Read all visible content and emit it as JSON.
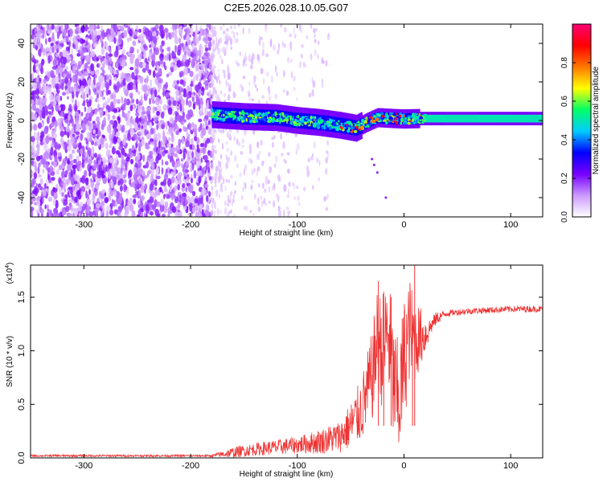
{
  "title": "C2E5.2026.028.10.05.G07",
  "chart_data": [
    {
      "type": "heatmap",
      "title": "C2E5.2026.028.10.05.G07",
      "xlabel": "Height of straight line (km)",
      "ylabel": "Frequency (Hz)",
      "xlim": [
        -350,
        130
      ],
      "ylim": [
        -50,
        50
      ],
      "x_ticks": [
        "-300",
        "-200",
        "-100",
        "0",
        "100"
      ],
      "x_tick_values": [
        -300,
        -200,
        -100,
        0,
        100
      ],
      "y_ticks": [
        "-40",
        "-20",
        "0",
        "20",
        "40"
      ],
      "y_tick_values": [
        -40,
        -20,
        0,
        20,
        40
      ],
      "noise_region_km": [
        -350,
        -180
      ],
      "signal_track": [
        {
          "x": -180,
          "f": 3.0
        },
        {
          "x": -150,
          "f": 2.0
        },
        {
          "x": -120,
          "f": 1.5
        },
        {
          "x": -100,
          "f": 0.0
        },
        {
          "x": -80,
          "f": -1.0
        },
        {
          "x": -60,
          "f": -2.5
        },
        {
          "x": -45,
          "f": -4.0
        },
        {
          "x": -35,
          "f": -1.0
        },
        {
          "x": -25,
          "f": 1.5
        },
        {
          "x": -10,
          "f": 1.0
        },
        {
          "x": 0,
          "f": 0.8
        },
        {
          "x": 15,
          "f": 1.0
        },
        {
          "x": 130,
          "f": 1.0
        }
      ],
      "colorbar": {
        "label": "Normalized spectral amplitude",
        "range": [
          0.0,
          1.0
        ],
        "ticks": [
          "0.0",
          "0.2",
          "0.4",
          "0.6",
          "0.8"
        ],
        "tick_values": [
          0.0,
          0.2,
          0.4,
          0.6,
          0.8
        ],
        "colors": [
          "#ffffff",
          "#cc99ff",
          "#7700ff",
          "#0000ff",
          "#00ccff",
          "#00ff66",
          "#ffff00",
          "#ff7700",
          "#ff0000",
          "#ff0077"
        ]
      }
    },
    {
      "type": "line",
      "xlabel": "Height of straight line (km)",
      "ylabel": "SNR (10 * v/v)",
      "y_multiplier": "(x10",
      "y_multiplier_exp": "4",
      "y_multiplier_close": ")",
      "xlim": [
        -350,
        130
      ],
      "ylim": [
        0,
        1.8
      ],
      "x_ticks": [
        "-300",
        "-200",
        "-100",
        "0",
        "100"
      ],
      "x_tick_values": [
        -300,
        -200,
        -100,
        0,
        100
      ],
      "y_ticks": [
        "0.0",
        "0.5",
        "1.0",
        "1.5"
      ],
      "y_tick_values": [
        0.0,
        0.5,
        1.0,
        1.5
      ],
      "line_color": "#ee3333",
      "series": [
        {
          "name": "SNR",
          "points": [
            [
              -350,
              0.02
            ],
            [
              -300,
              0.02
            ],
            [
              -250,
              0.02
            ],
            [
              -200,
              0.02
            ],
            [
              -180,
              0.02
            ],
            [
              -160,
              0.05
            ],
            [
              -140,
              0.08
            ],
            [
              -120,
              0.1
            ],
            [
              -100,
              0.12
            ],
            [
              -80,
              0.15
            ],
            [
              -60,
              0.2
            ],
            [
              -50,
              0.3
            ],
            [
              -40,
              0.45
            ],
            [
              -30,
              0.75
            ],
            [
              -25,
              1.1
            ],
            [
              -20,
              1.0
            ],
            [
              -15,
              1.2
            ],
            [
              -10,
              0.7
            ],
            [
              -5,
              0.5
            ],
            [
              0,
              0.9
            ],
            [
              5,
              1.2
            ],
            [
              10,
              1.1
            ],
            [
              20,
              1.15
            ],
            [
              30,
              1.3
            ],
            [
              40,
              1.35
            ],
            [
              60,
              1.37
            ],
            [
              80,
              1.38
            ],
            [
              100,
              1.39
            ],
            [
              130,
              1.39
            ]
          ],
          "noise_amplitude": [
            [
              -350,
              0.01
            ],
            [
              -180,
              0.01
            ],
            [
              -160,
              0.05
            ],
            [
              -100,
              0.08
            ],
            [
              -60,
              0.15
            ],
            [
              -40,
              0.3
            ],
            [
              -20,
              0.55
            ],
            [
              0,
              0.6
            ],
            [
              10,
              0.4
            ],
            [
              25,
              0.08
            ],
            [
              40,
              0.03
            ],
            [
              130,
              0.03
            ]
          ]
        }
      ],
      "spikes": [
        {
          "x": -24,
          "y": 1.65
        },
        {
          "x": -19,
          "y": 1.55
        },
        {
          "x": -12,
          "y": 1.5
        },
        {
          "x": 10,
          "y": 1.8
        },
        {
          "x": 8,
          "y": 1.25
        }
      ]
    }
  ]
}
